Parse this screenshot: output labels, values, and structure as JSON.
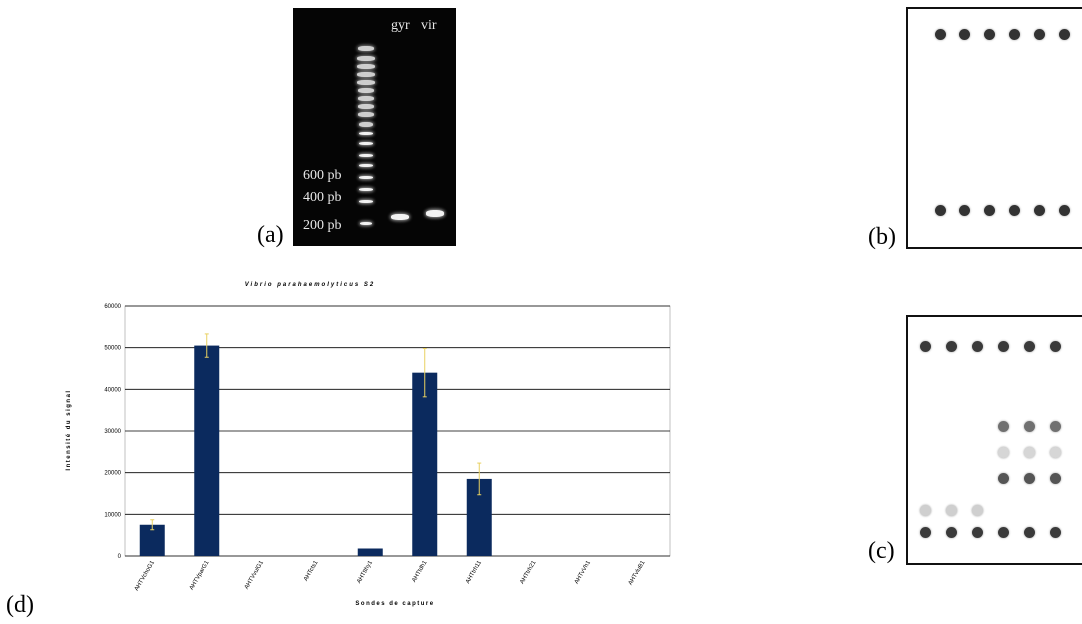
{
  "panels": {
    "a": "(a)",
    "b": "(b)",
    "c": "(c)",
    "d": "(d)"
  },
  "gel": {
    "lane_labels": [
      "gyr",
      "vir"
    ],
    "ladder_labels": [
      "600 pb",
      "400 pb",
      "200 pb"
    ]
  },
  "colors": {
    "bar": "#0b2a5e",
    "error_bar": "#e8d060",
    "grid": "#000000"
  },
  "chart_data": {
    "type": "bar",
    "title": "Vibrio parahaemolyticus S2",
    "xlabel": "Sondes de capture",
    "ylabel": "Intensité du signal",
    "ylim": [
      0,
      60000
    ],
    "yticks": [
      "0",
      "10000",
      "20000",
      "30000",
      "40000",
      "50000",
      "60000"
    ],
    "categories": [
      "AHTVchoG1",
      "AHTVparG1",
      "AHTVvulG1",
      "AHTcts1",
      "AHTtIhy1",
      "AHTtdh1",
      "AHTtrh11",
      "AHTtrh21",
      "AHTvVh1",
      "AHTvluB1"
    ],
    "values": [
      7500,
      50500,
      0,
      0,
      1800,
      44000,
      18500,
      0,
      0,
      0
    ],
    "errors": [
      1200,
      2800,
      0,
      0,
      0,
      5800,
      3800,
      0,
      0,
      0
    ]
  }
}
